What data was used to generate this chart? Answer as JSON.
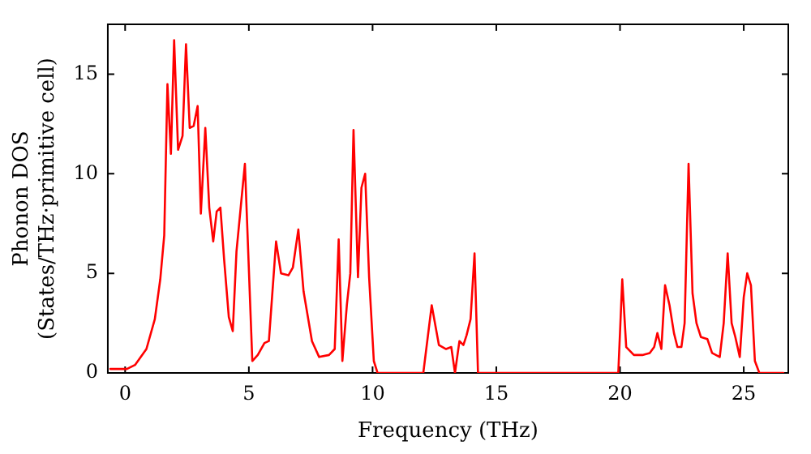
{
  "chart_data": {
    "type": "line",
    "xlabel": "Frequency (THz)",
    "ylabel": "Phonon DOS\n(States/THz·primitive cell)",
    "xlim": [
      -0.7,
      26.8
    ],
    "xticks": [
      0,
      5,
      10,
      15,
      20,
      25
    ],
    "ylim": [
      0,
      17.5
    ],
    "yticks": [
      0,
      5,
      10,
      15
    ],
    "series": [
      {
        "color": "#ff0000",
        "x": [
          -0.6,
          0.07,
          0.4,
          0.86,
          1.2,
          1.42,
          1.58,
          1.71,
          1.85,
          1.98,
          2.14,
          2.32,
          2.46,
          2.61,
          2.77,
          2.93,
          3.06,
          3.24,
          3.4,
          3.56,
          3.7,
          3.85,
          4.0,
          4.19,
          4.35,
          4.5,
          4.84,
          5.14,
          5.36,
          5.63,
          5.81,
          6.1,
          6.3,
          6.6,
          6.78,
          7.0,
          7.21,
          7.55,
          7.84,
          8.24,
          8.47,
          8.63,
          8.78,
          8.96,
          9.1,
          9.23,
          9.41,
          9.55,
          9.7,
          9.86,
          10.05,
          10.2,
          12.05,
          12.39,
          12.68,
          12.97,
          13.18,
          13.33,
          13.51,
          13.67,
          13.8,
          13.96,
          14.12,
          14.26,
          19.93,
          20.09,
          20.25,
          20.56,
          20.9,
          21.2,
          21.38,
          21.51,
          21.67,
          21.82,
          22.0,
          22.18,
          22.32,
          22.48,
          22.61,
          22.77,
          22.93,
          23.09,
          23.27,
          23.53,
          23.72,
          24.03,
          24.19,
          24.35,
          24.51,
          24.66,
          24.84,
          25.0,
          25.14,
          25.29,
          25.45,
          25.63,
          26.6
        ],
        "values": [
          0.2,
          0.2,
          0.4,
          1.2,
          2.7,
          4.7,
          6.9,
          14.5,
          11.0,
          16.7,
          11.2,
          11.9,
          16.5,
          12.3,
          12.4,
          13.4,
          8.0,
          12.3,
          8.3,
          6.6,
          8.1,
          8.3,
          5.7,
          2.8,
          2.1,
          6.1,
          10.5,
          0.6,
          0.9,
          1.5,
          1.6,
          6.6,
          5.0,
          4.9,
          5.3,
          7.2,
          4.1,
          1.6,
          0.8,
          0.9,
          1.2,
          6.7,
          0.6,
          3.4,
          5.0,
          12.2,
          4.8,
          9.3,
          10.0,
          4.8,
          0.6,
          0,
          0,
          3.4,
          1.4,
          1.2,
          1.3,
          0,
          1.6,
          1.4,
          1.9,
          2.7,
          6.0,
          0,
          0,
          4.7,
          1.3,
          0.9,
          0.9,
          1.0,
          1.3,
          2.0,
          1.2,
          4.4,
          3.4,
          2.0,
          1.3,
          1.3,
          2.5,
          10.5,
          4.0,
          2.5,
          1.8,
          1.7,
          1.0,
          0.8,
          2.5,
          6.0,
          2.5,
          1.8,
          0.8,
          3.8,
          5.0,
          4.4,
          0.6,
          0,
          0
        ]
      }
    ]
  }
}
